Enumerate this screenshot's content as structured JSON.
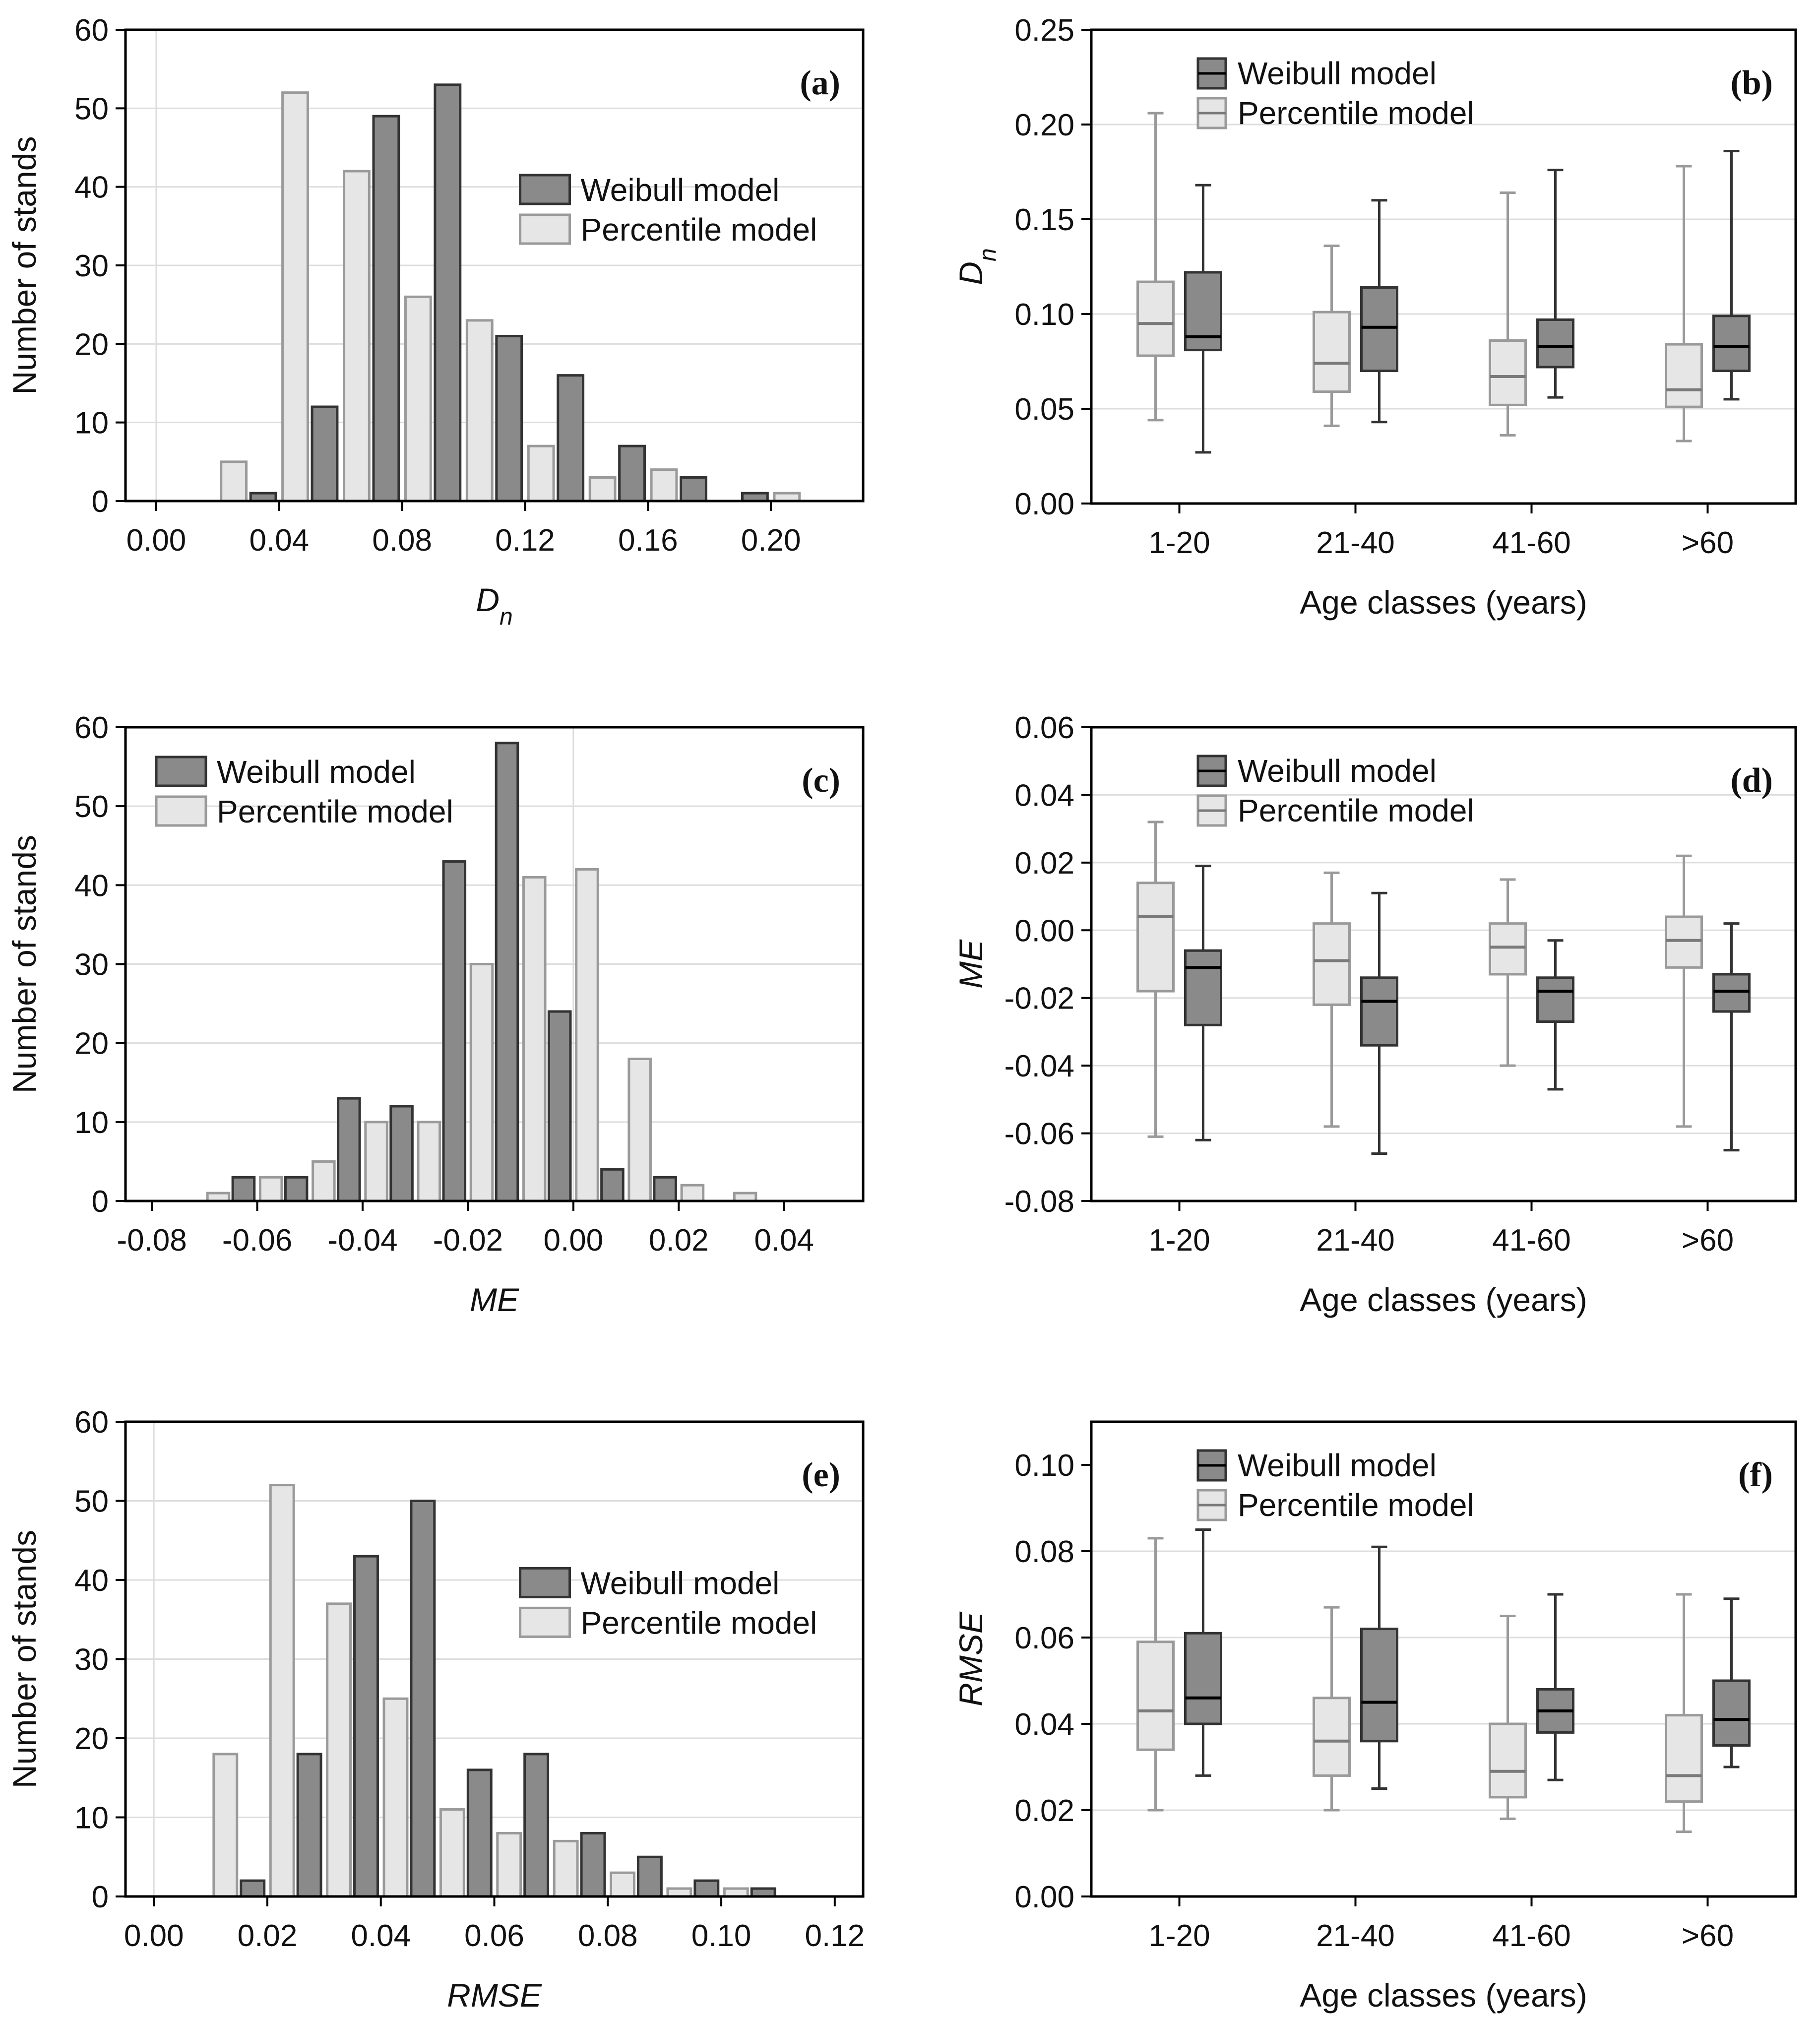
{
  "colors": {
    "weibull_fill": "#8a8a8a",
    "weibull_stroke": "#333333",
    "weibull_median": "#000000",
    "percentile_fill": "#e6e6e6",
    "percentile_stroke": "#9a9a9a",
    "percentile_median": "#7a7a7a",
    "grid": "#dddddd",
    "axis": "#000000"
  },
  "chart_data": [
    {
      "id": "a",
      "type": "bar",
      "panel_label": "(a)",
      "xlabel": "D",
      "xlabel_sub": "n",
      "ylabel": "Number of stands",
      "xlim": [
        -0.01,
        0.23
      ],
      "ylim": [
        0,
        60
      ],
      "xticks": [
        0.0,
        0.04,
        0.08,
        0.12,
        0.16,
        0.2
      ],
      "xtick_labels": [
        "0.00",
        "0.04",
        "0.08",
        "0.12",
        "0.16",
        "0.20"
      ],
      "yticks": [
        0,
        10,
        20,
        30,
        40,
        50,
        60
      ],
      "ytick_labels": [
        "0",
        "10",
        "20",
        "30",
        "40",
        "50",
        "60"
      ],
      "bin_width": 0.02,
      "legend_position": "center-right",
      "series": [
        {
          "name": "Weibull model",
          "key": "weibull",
          "x": [
            0.03,
            0.05,
            0.07,
            0.09,
            0.11,
            0.13,
            0.15,
            0.17,
            0.19,
            0.21
          ],
          "values": [
            1,
            12,
            49,
            53,
            21,
            16,
            7,
            3,
            1,
            0
          ]
        },
        {
          "name": "Percentile model",
          "key": "percentile",
          "x": [
            0.03,
            0.05,
            0.07,
            0.09,
            0.11,
            0.13,
            0.15,
            0.17,
            0.19,
            0.21
          ],
          "values": [
            5,
            52,
            42,
            26,
            23,
            7,
            3,
            4,
            0,
            1
          ]
        }
      ]
    },
    {
      "id": "b",
      "type": "box",
      "panel_label": "(b)",
      "ylabel": "D",
      "ylabel_sub": "n",
      "xlabel": "Age classes (years)",
      "categories": [
        "1-20",
        "21-40",
        "41-60",
        ">60"
      ],
      "ylim": [
        0,
        0.25
      ],
      "yticks": [
        0,
        0.05,
        0.1,
        0.15,
        0.2,
        0.25
      ],
      "ytick_labels": [
        "0.00",
        "0.05",
        "0.10",
        "0.15",
        "0.20",
        "0.25"
      ],
      "legend_position": "top-left",
      "series": [
        {
          "name": "Weibull model",
          "key": "weibull",
          "boxes": [
            {
              "min": 0.027,
              "q1": 0.081,
              "median": 0.088,
              "q3": 0.122,
              "max": 0.168
            },
            {
              "min": 0.043,
              "q1": 0.07,
              "median": 0.093,
              "q3": 0.114,
              "max": 0.16
            },
            {
              "min": 0.056,
              "q1": 0.072,
              "median": 0.083,
              "q3": 0.097,
              "max": 0.176
            },
            {
              "min": 0.055,
              "q1": 0.07,
              "median": 0.083,
              "q3": 0.099,
              "max": 0.186
            }
          ]
        },
        {
          "name": "Percentile model",
          "key": "percentile",
          "boxes": [
            {
              "min": 0.044,
              "q1": 0.078,
              "median": 0.095,
              "q3": 0.117,
              "max": 0.206
            },
            {
              "min": 0.041,
              "q1": 0.059,
              "median": 0.074,
              "q3": 0.101,
              "max": 0.136
            },
            {
              "min": 0.036,
              "q1": 0.052,
              "median": 0.067,
              "q3": 0.086,
              "max": 0.164
            },
            {
              "min": 0.033,
              "q1": 0.051,
              "median": 0.06,
              "q3": 0.084,
              "max": 0.178
            }
          ]
        }
      ]
    },
    {
      "id": "c",
      "type": "bar",
      "panel_label": "(c)",
      "xlabel": "ME",
      "ylabel": "Number of stands",
      "xlim": [
        -0.085,
        0.055
      ],
      "ylim": [
        0,
        60
      ],
      "xticks": [
        -0.08,
        -0.06,
        -0.04,
        -0.02,
        0.0,
        0.02,
        0.04
      ],
      "xtick_labels": [
        "-0.08",
        "-0.06",
        "-0.04",
        "-0.02",
        "0.00",
        "0.02",
        "0.04"
      ],
      "yticks": [
        0,
        10,
        20,
        30,
        40,
        50,
        60
      ],
      "ytick_labels": [
        "0",
        "10",
        "20",
        "30",
        "40",
        "50",
        "60"
      ],
      "bin_width": 0.01,
      "legend_position": "top-left",
      "series": [
        {
          "name": "Weibull model",
          "key": "weibull",
          "x": [
            -0.065,
            -0.055,
            -0.045,
            -0.035,
            -0.025,
            -0.015,
            -0.005,
            0.005,
            0.015,
            0.025,
            0.035
          ],
          "values": [
            3,
            3,
            13,
            12,
            43,
            58,
            24,
            4,
            3,
            0,
            0
          ]
        },
        {
          "name": "Percentile model",
          "key": "percentile",
          "x": [
            -0.065,
            -0.055,
            -0.045,
            -0.035,
            -0.025,
            -0.015,
            -0.005,
            0.005,
            0.015,
            0.025,
            0.035
          ],
          "values": [
            1,
            3,
            5,
            10,
            10,
            30,
            41,
            42,
            18,
            2,
            1
          ]
        }
      ]
    },
    {
      "id": "d",
      "type": "box",
      "panel_label": "(d)",
      "ylabel": "ME",
      "xlabel": "Age classes (years)",
      "categories": [
        "1-20",
        "21-40",
        "41-60",
        ">60"
      ],
      "ylim": [
        -0.08,
        0.06
      ],
      "yticks": [
        -0.08,
        -0.06,
        -0.04,
        -0.02,
        0.0,
        0.02,
        0.04,
        0.06
      ],
      "ytick_labels": [
        "-0.08",
        "-0.06",
        "-0.04",
        "-0.02",
        "0.00",
        "0.02",
        "0.04",
        "0.06"
      ],
      "legend_position": "top-left",
      "series": [
        {
          "name": "Weibull model",
          "key": "weibull",
          "boxes": [
            {
              "min": -0.062,
              "q1": -0.028,
              "median": -0.011,
              "q3": -0.006,
              "max": 0.019
            },
            {
              "min": -0.066,
              "q1": -0.034,
              "median": -0.021,
              "q3": -0.014,
              "max": 0.011
            },
            {
              "min": -0.047,
              "q1": -0.027,
              "median": -0.018,
              "q3": -0.014,
              "max": -0.003
            },
            {
              "min": -0.065,
              "q1": -0.024,
              "median": -0.018,
              "q3": -0.013,
              "max": 0.002
            }
          ]
        },
        {
          "name": "Percentile model",
          "key": "percentile",
          "boxes": [
            {
              "min": -0.061,
              "q1": -0.018,
              "median": 0.004,
              "q3": 0.014,
              "max": 0.032
            },
            {
              "min": -0.058,
              "q1": -0.022,
              "median": -0.009,
              "q3": 0.002,
              "max": 0.017
            },
            {
              "min": -0.04,
              "q1": -0.013,
              "median": -0.005,
              "q3": 0.002,
              "max": 0.015
            },
            {
              "min": -0.058,
              "q1": -0.011,
              "median": -0.003,
              "q3": 0.004,
              "max": 0.022
            }
          ]
        }
      ]
    },
    {
      "id": "e",
      "type": "bar",
      "panel_label": "(e)",
      "xlabel": "RMSE",
      "ylabel": "Number of stands",
      "xlim": [
        -0.005,
        0.125
      ],
      "ylim": [
        0,
        60
      ],
      "xticks": [
        0.0,
        0.02,
        0.04,
        0.06,
        0.08,
        0.1,
        0.12
      ],
      "xtick_labels": [
        "0.00",
        "0.02",
        "0.04",
        "0.06",
        "0.08",
        "0.10",
        "0.12"
      ],
      "yticks": [
        0,
        10,
        20,
        30,
        40,
        50,
        60
      ],
      "ytick_labels": [
        "0",
        "10",
        "20",
        "30",
        "40",
        "50",
        "60"
      ],
      "bin_width": 0.01,
      "legend_position": "center-right",
      "series": [
        {
          "name": "Weibull model",
          "key": "weibull",
          "x": [
            0.015,
            0.025,
            0.035,
            0.045,
            0.055,
            0.065,
            0.075,
            0.085,
            0.095,
            0.105
          ],
          "values": [
            2,
            18,
            43,
            50,
            16,
            18,
            8,
            5,
            2,
            1
          ]
        },
        {
          "name": "Percentile model",
          "key": "percentile",
          "x": [
            0.015,
            0.025,
            0.035,
            0.045,
            0.055,
            0.065,
            0.075,
            0.085,
            0.095,
            0.105
          ],
          "values": [
            18,
            52,
            37,
            25,
            11,
            8,
            7,
            3,
            1,
            1
          ]
        }
      ]
    },
    {
      "id": "f",
      "type": "box",
      "panel_label": "(f)",
      "ylabel": "RMSE",
      "xlabel": "Age classes (years)",
      "categories": [
        "1-20",
        "21-40",
        "41-60",
        ">60"
      ],
      "ylim": [
        0,
        0.11
      ],
      "yticks": [
        0,
        0.02,
        0.04,
        0.06,
        0.08,
        0.1
      ],
      "ytick_labels": [
        "0.00",
        "0.02",
        "0.04",
        "0.06",
        "0.08",
        "0.10"
      ],
      "legend_position": "top-left",
      "series": [
        {
          "name": "Weibull model",
          "key": "weibull",
          "boxes": [
            {
              "min": 0.028,
              "q1": 0.04,
              "median": 0.046,
              "q3": 0.061,
              "max": 0.085
            },
            {
              "min": 0.025,
              "q1": 0.036,
              "median": 0.045,
              "q3": 0.062,
              "max": 0.081
            },
            {
              "min": 0.027,
              "q1": 0.038,
              "median": 0.043,
              "q3": 0.048,
              "max": 0.07
            },
            {
              "min": 0.03,
              "q1": 0.035,
              "median": 0.041,
              "q3": 0.05,
              "max": 0.069
            }
          ]
        },
        {
          "name": "Percentile model",
          "key": "percentile",
          "boxes": [
            {
              "min": 0.02,
              "q1": 0.034,
              "median": 0.043,
              "q3": 0.059,
              "max": 0.083
            },
            {
              "min": 0.02,
              "q1": 0.028,
              "median": 0.036,
              "q3": 0.046,
              "max": 0.067
            },
            {
              "min": 0.018,
              "q1": 0.023,
              "median": 0.029,
              "q3": 0.04,
              "max": 0.065
            },
            {
              "min": 0.015,
              "q1": 0.022,
              "median": 0.028,
              "q3": 0.042,
              "max": 0.07
            }
          ]
        }
      ]
    }
  ]
}
